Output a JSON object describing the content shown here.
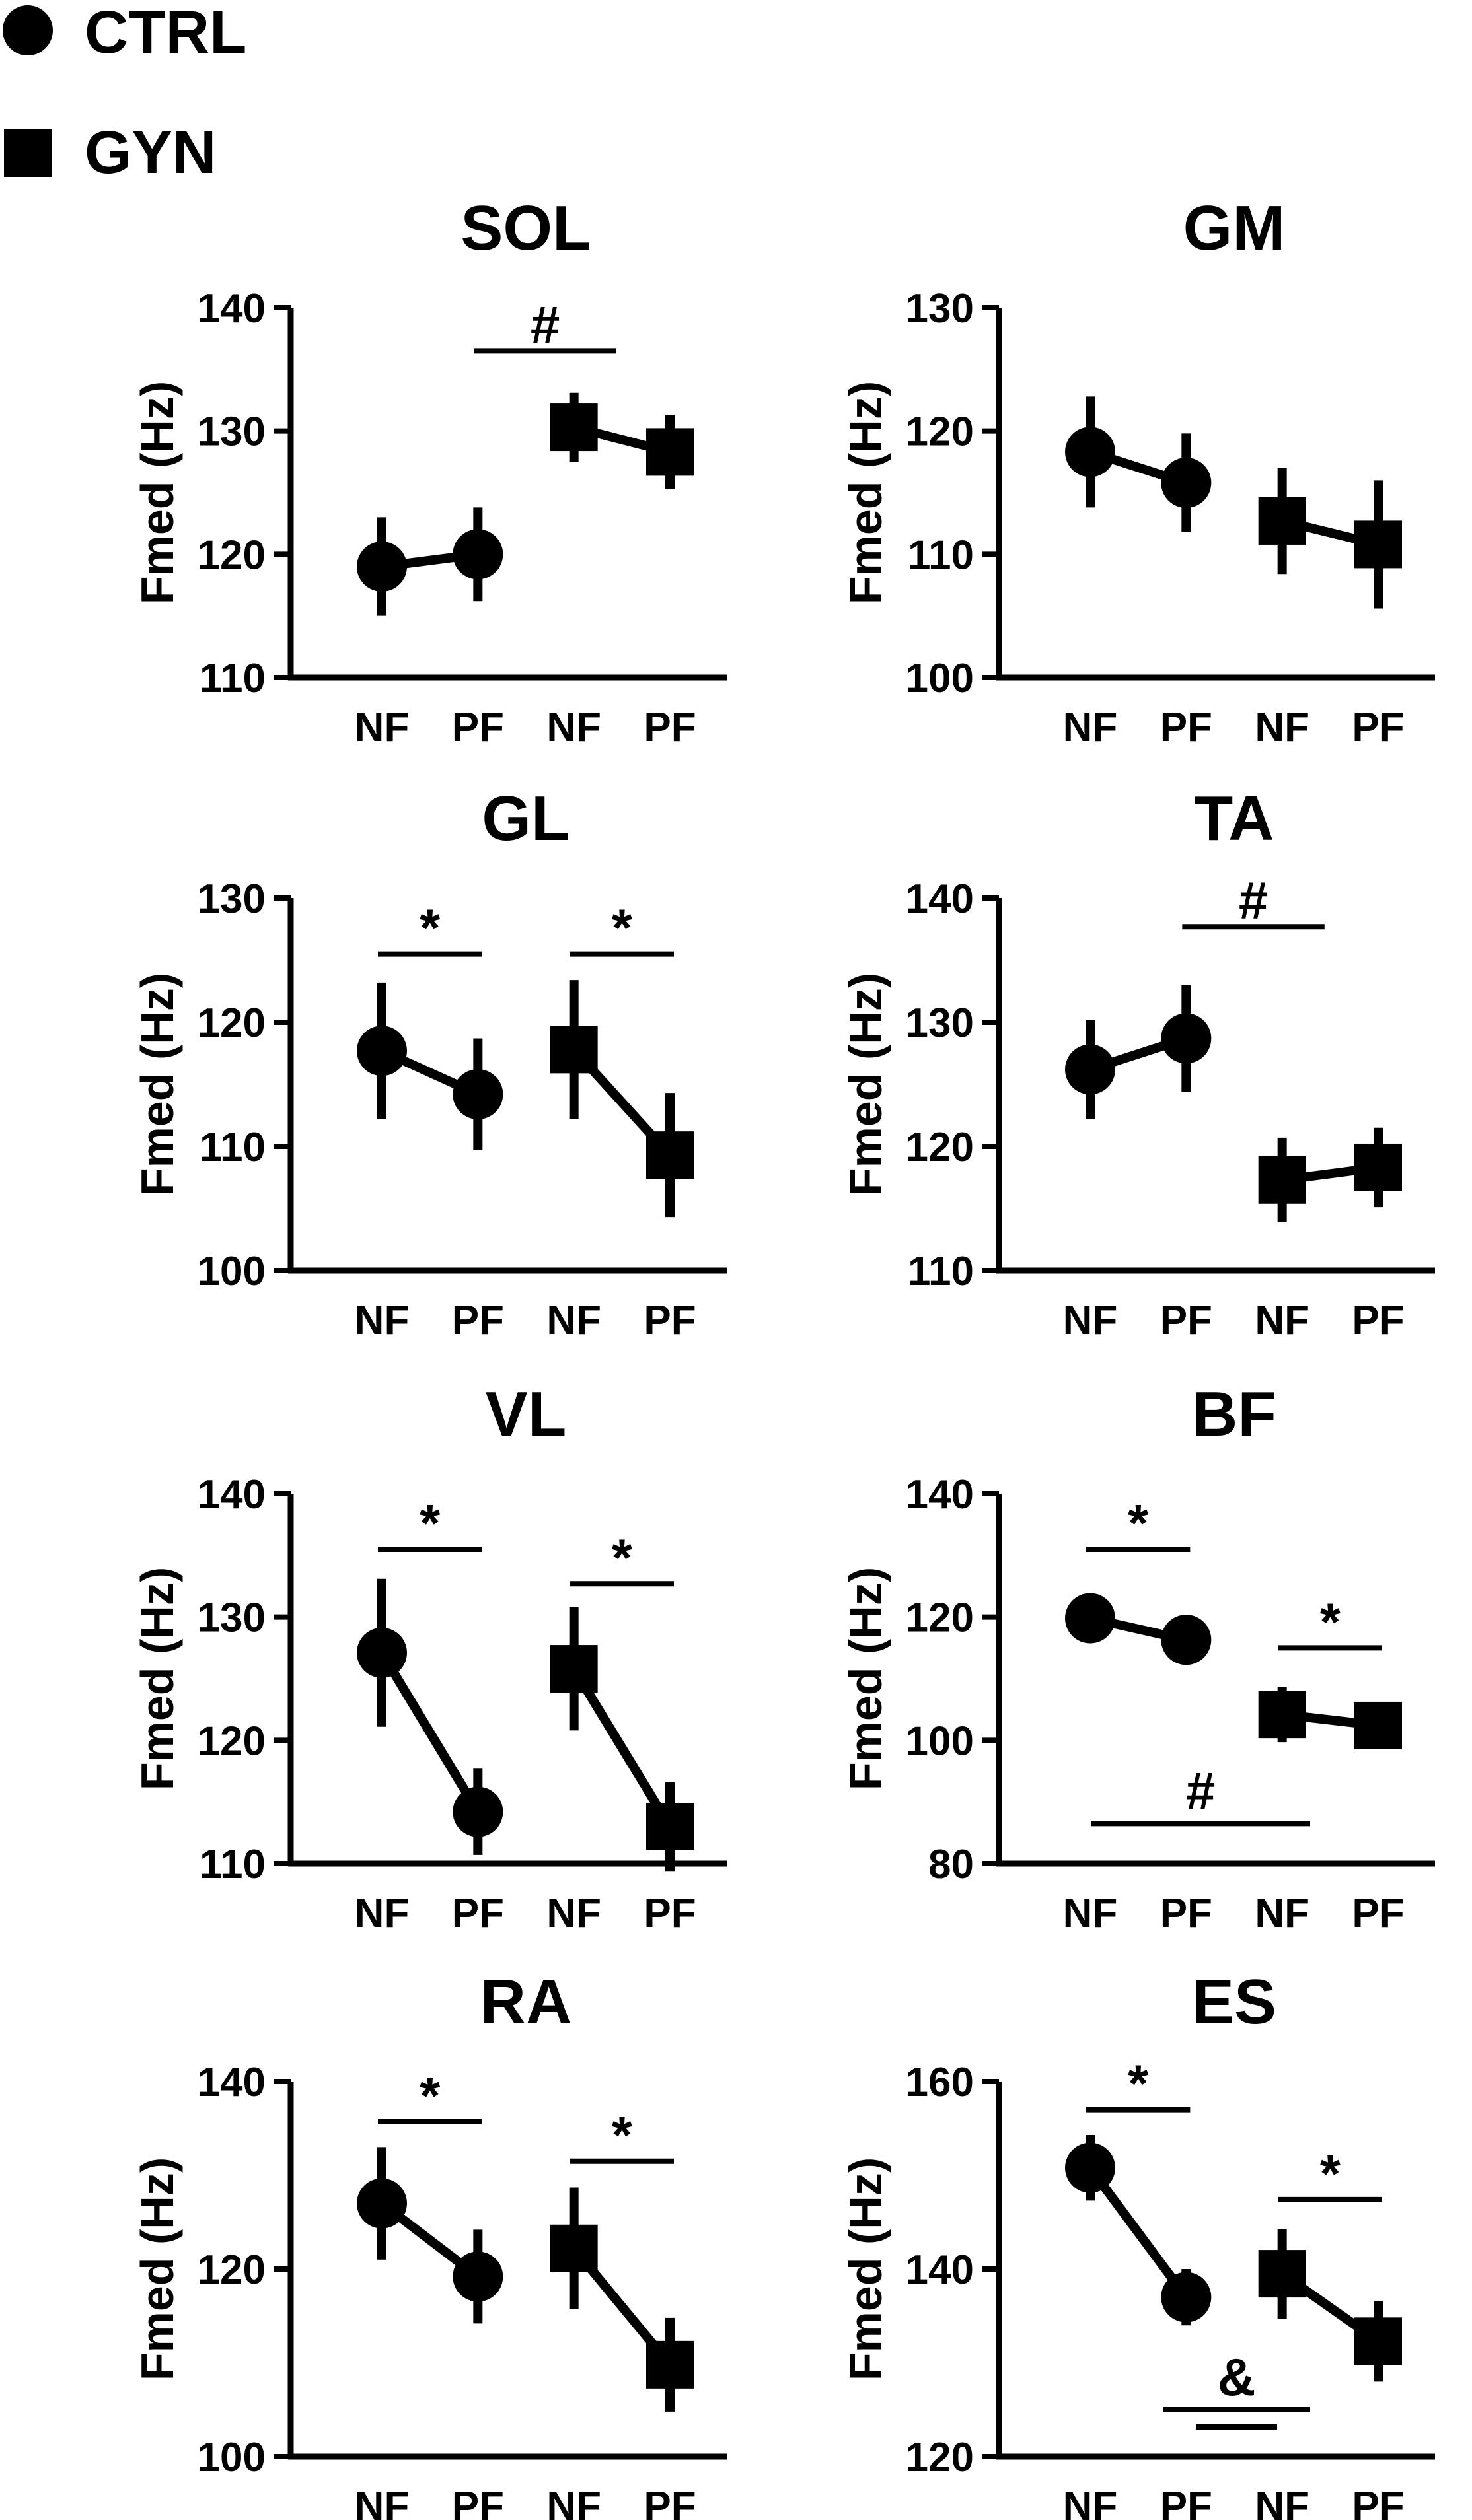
{
  "legend": [
    {
      "label": "CTRL",
      "marker": "circle"
    },
    {
      "label": "GYN",
      "marker": "square"
    }
  ],
  "chart_data": [
    {
      "type": "scatter",
      "title": "SOL",
      "ylabel": "Fmed (Hz)",
      "ylim": [
        110,
        140
      ],
      "yticks": [
        110,
        120,
        130,
        140
      ],
      "categories": [
        "NF",
        "PF",
        "NF",
        "PF"
      ],
      "series": [
        {
          "name": "CTRL",
          "marker": "circle",
          "x": [
            0,
            1
          ],
          "y": [
            119,
            120
          ],
          "err": [
            4,
            3.8
          ]
        },
        {
          "name": "GYN",
          "marker": "square",
          "x": [
            2,
            3
          ],
          "y": [
            130.3,
            128.3
          ],
          "err": [
            2.8,
            3
          ]
        }
      ],
      "annotations": [
        {
          "text": "#",
          "from": 1,
          "to": 2.4,
          "level": 136.5
        }
      ]
    },
    {
      "type": "scatter",
      "title": "GM",
      "ylabel": "Fmed (Hz)",
      "ylim": [
        100,
        130
      ],
      "yticks": [
        100,
        110,
        120,
        130
      ],
      "categories": [
        "NF",
        "PF",
        "NF",
        "PF"
      ],
      "series": [
        {
          "name": "CTRL",
          "marker": "circle",
          "x": [
            0,
            1
          ],
          "y": [
            118.3,
            115.8
          ],
          "err": [
            4.5,
            4
          ]
        },
        {
          "name": "GYN",
          "marker": "square",
          "x": [
            2,
            3
          ],
          "y": [
            112.7,
            110.8
          ],
          "err": [
            4.3,
            5.2
          ]
        }
      ],
      "annotations": []
    },
    {
      "type": "scatter",
      "title": "GL",
      "ylabel": "Fmed (Hz)",
      "ylim": [
        100,
        130
      ],
      "yticks": [
        100,
        110,
        120,
        130
      ],
      "categories": [
        "NF",
        "PF",
        "NF",
        "PF"
      ],
      "series": [
        {
          "name": "CTRL",
          "marker": "circle",
          "x": [
            0,
            1
          ],
          "y": [
            117.7,
            114.2
          ],
          "err": [
            5.5,
            4.5
          ]
        },
        {
          "name": "GYN",
          "marker": "square",
          "x": [
            2,
            3
          ],
          "y": [
            117.8,
            109.3
          ],
          "err": [
            5.6,
            5
          ]
        }
      ],
      "annotations": [
        {
          "text": "*",
          "from": 0,
          "to": 1,
          "level": 125.5
        },
        {
          "text": "*",
          "from": 2,
          "to": 3,
          "level": 125.5
        }
      ]
    },
    {
      "type": "scatter",
      "title": "TA",
      "ylabel": "Fmed (Hz)",
      "ylim": [
        110,
        140
      ],
      "yticks": [
        110,
        120,
        130,
        140
      ],
      "categories": [
        "NF",
        "PF",
        "NF",
        "PF"
      ],
      "series": [
        {
          "name": "CTRL",
          "marker": "circle",
          "x": [
            0,
            1
          ],
          "y": [
            126.2,
            128.7
          ],
          "err": [
            4,
            4.3
          ]
        },
        {
          "name": "GYN",
          "marker": "square",
          "x": [
            2,
            3
          ],
          "y": [
            117.3,
            118.3
          ],
          "err": [
            3.4,
            3.2
          ]
        }
      ],
      "annotations": [
        {
          "text": "#",
          "from": 1,
          "to": 2.4,
          "level": 137.7
        }
      ]
    },
    {
      "type": "scatter",
      "title": "VL",
      "ylabel": "Fmed (Hz)",
      "ylim": [
        110,
        140
      ],
      "yticks": [
        110,
        120,
        130,
        140
      ],
      "categories": [
        "NF",
        "PF",
        "NF",
        "PF"
      ],
      "series": [
        {
          "name": "CTRL",
          "marker": "circle",
          "x": [
            0,
            1
          ],
          "y": [
            127.1,
            114.2
          ],
          "err": [
            6,
            3.5
          ]
        },
        {
          "name": "GYN",
          "marker": "square",
          "x": [
            2,
            3
          ],
          "y": [
            125.8,
            113
          ],
          "err": [
            5,
            3.6
          ]
        }
      ],
      "annotations": [
        {
          "text": "*",
          "from": 0,
          "to": 1,
          "level": 135.5
        },
        {
          "text": "*",
          "from": 2,
          "to": 3,
          "level": 132.7
        }
      ]
    },
    {
      "type": "scatter",
      "title": "BF",
      "ylabel": "Fmed (Hz)",
      "ylim": [
        80,
        140
      ],
      "yticks": [
        80,
        100,
        120,
        140
      ],
      "categories": [
        "NF",
        "PF",
        "NF",
        "PF"
      ],
      "series": [
        {
          "name": "CTRL",
          "marker": "circle",
          "x": [
            0,
            1
          ],
          "y": [
            119.8,
            116.3
          ],
          "err": [
            2,
            2
          ]
        },
        {
          "name": "GYN",
          "marker": "square",
          "x": [
            2,
            3
          ],
          "y": [
            104.2,
            102.4
          ],
          "err": [
            4.5,
            3.2
          ]
        }
      ],
      "annotations": [
        {
          "text": "*",
          "from": 0,
          "to": 1,
          "level": 131
        },
        {
          "text": "*",
          "from": 2,
          "to": 3,
          "level": 115
        },
        {
          "text": "#",
          "from": 0.05,
          "to": 2.25,
          "level": 86.5,
          "below": true
        }
      ]
    },
    {
      "type": "scatter",
      "title": "RA",
      "ylabel": "Fmed (Hz)",
      "ylim": [
        100,
        140
      ],
      "yticks": [
        100,
        120,
        140
      ],
      "categories": [
        "NF",
        "PF",
        "NF",
        "PF"
      ],
      "series": [
        {
          "name": "CTRL",
          "marker": "circle",
          "x": [
            0,
            1
          ],
          "y": [
            127,
            119.2
          ],
          "err": [
            6,
            5
          ]
        },
        {
          "name": "GYN",
          "marker": "square",
          "x": [
            2,
            3
          ],
          "y": [
            122.2,
            109.8
          ],
          "err": [
            6.5,
            5
          ]
        }
      ],
      "annotations": [
        {
          "text": "*",
          "from": 0,
          "to": 1,
          "level": 135.7
        },
        {
          "text": "*",
          "from": 2,
          "to": 3,
          "level": 131.5
        }
      ]
    },
    {
      "type": "scatter",
      "title": "ES",
      "ylabel": "Fmed (Hz)",
      "ylim": [
        120,
        160
      ],
      "yticks": [
        120,
        140,
        160
      ],
      "categories": [
        "NF",
        "PF",
        "NF",
        "PF"
      ],
      "series": [
        {
          "name": "CTRL",
          "marker": "circle",
          "x": [
            0,
            1
          ],
          "y": [
            150.8,
            137
          ],
          "err": [
            3.5,
            3
          ]
        },
        {
          "name": "GYN",
          "marker": "square",
          "x": [
            2,
            3
          ],
          "y": [
            139.5,
            132.3
          ],
          "err": [
            4.8,
            4.3
          ]
        }
      ],
      "annotations": [
        {
          "text": "*",
          "from": 0,
          "to": 1,
          "level": 157
        },
        {
          "text": "*",
          "from": 2,
          "to": 3,
          "level": 147.4
        },
        {
          "text": "&",
          "from": 0.8,
          "to": 2.25,
          "level": 125,
          "below": true,
          "double": true
        }
      ]
    }
  ]
}
